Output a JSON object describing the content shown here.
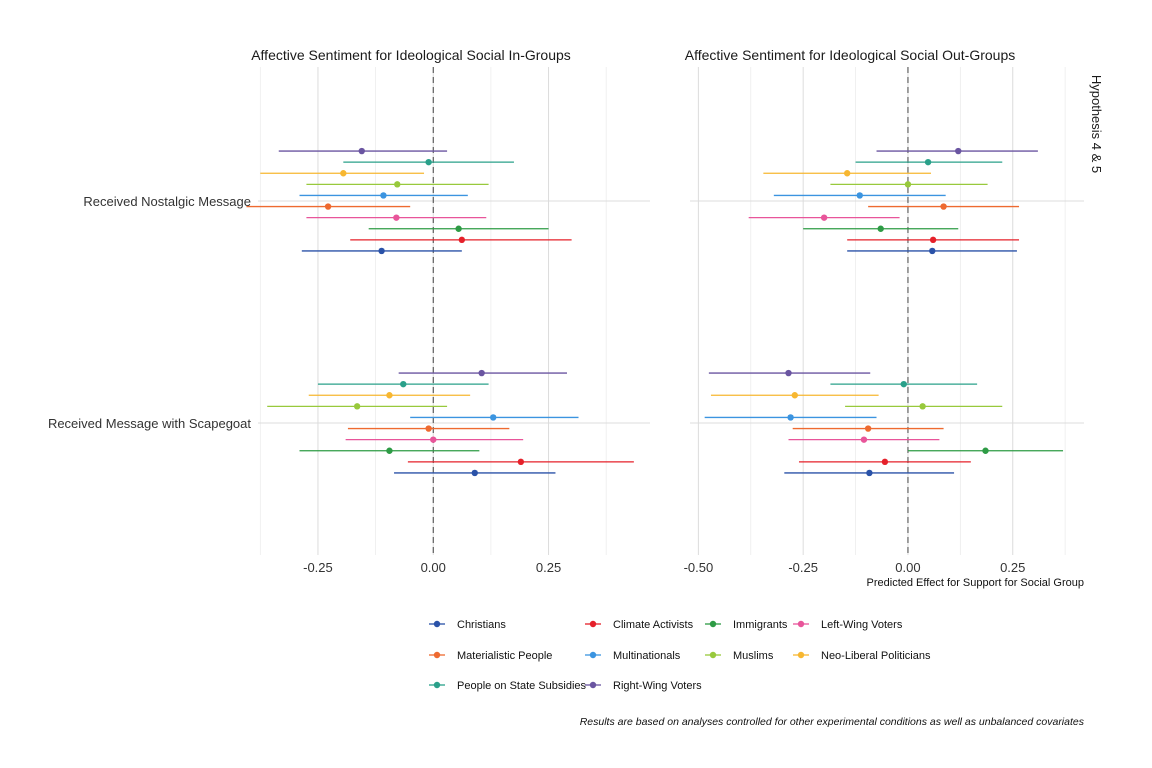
{
  "chart_data": {
    "type": "forest-plot",
    "facet_strip": "Hypothesis 4 & 5",
    "xlabel": "Predicted Effect for Support for Social Group",
    "caption": "Results are based on analyses controlled for other experimental conditions as well as unbalanced covariates",
    "conditions": [
      "Received Nostalgic Message",
      "Received Message with Scapegoat"
    ],
    "groups": [
      {
        "name": "Right-Wing Voters",
        "color": "#6a55a1"
      },
      {
        "name": "People on State Subsidies",
        "color": "#2aa08a"
      },
      {
        "name": "Neo-Liberal Politicians",
        "color": "#f7b731"
      },
      {
        "name": "Muslims",
        "color": "#98c93c"
      },
      {
        "name": "Multinationals",
        "color": "#3b94e0"
      },
      {
        "name": "Materialistic People",
        "color": "#ee6a30"
      },
      {
        "name": "Left-Wing Voters",
        "color": "#e8559a"
      },
      {
        "name": "Immigrants",
        "color": "#2e9b45"
      },
      {
        "name": "Climate Activists",
        "color": "#e5202a"
      },
      {
        "name": "Christians",
        "color": "#2a52a8"
      }
    ],
    "legend_order": [
      "Christians",
      "Climate Activists",
      "Immigrants",
      "Left-Wing Voters",
      "Materialistic People",
      "Multinationals",
      "Muslims",
      "Neo-Liberal Politicians",
      "People on State Subsidies",
      "Right-Wing Voters"
    ],
    "panels": [
      {
        "title": "Affective Sentiment for Ideological Social In-Groups",
        "xlim": [
          -0.38,
          0.47
        ],
        "xticks": [
          -0.25,
          0.0,
          0.25
        ],
        "xtick_labels": [
          "-0.25",
          "0.00",
          "0.25"
        ],
        "estimates": {
          "Received Nostalgic Message": [
            [
              -0.155,
              -0.335,
              0.03
            ],
            [
              -0.01,
              -0.195,
              0.175
            ],
            [
              -0.195,
              -0.375,
              -0.02
            ],
            [
              -0.078,
              -0.275,
              0.12
            ],
            [
              -0.108,
              -0.29,
              0.075
            ],
            [
              -0.228,
              -0.405,
              -0.05
            ],
            [
              -0.08,
              -0.275,
              0.115
            ],
            [
              0.055,
              -0.14,
              0.25
            ],
            [
              0.062,
              -0.18,
              0.3
            ],
            [
              -0.112,
              -0.285,
              0.062
            ]
          ],
          "Received Message with Scapegoat": [
            [
              0.105,
              -0.075,
              0.29
            ],
            [
              -0.065,
              -0.25,
              0.12
            ],
            [
              -0.095,
              -0.27,
              0.08
            ],
            [
              -0.165,
              -0.36,
              0.03
            ],
            [
              0.13,
              -0.05,
              0.315
            ],
            [
              -0.01,
              -0.185,
              0.165
            ],
            [
              0.0,
              -0.19,
              0.195
            ],
            [
              -0.095,
              -0.29,
              0.1
            ],
            [
              0.19,
              -0.055,
              0.435
            ],
            [
              0.09,
              -0.085,
              0.265
            ]
          ]
        }
      },
      {
        "title": "Affective Sentiment for Ideological Social Out-Groups",
        "xlim": [
          -0.52,
          0.42
        ],
        "xticks": [
          -0.5,
          -0.25,
          0.0,
          0.25
        ],
        "xtick_labels": [
          "-0.50",
          "-0.25",
          "0.00",
          "0.25"
        ],
        "estimates": {
          "Received Nostalgic Message": [
            [
              0.12,
              -0.075,
              0.31
            ],
            [
              0.048,
              -0.125,
              0.225
            ],
            [
              -0.145,
              -0.345,
              0.055
            ],
            [
              0.0,
              -0.185,
              0.19
            ],
            [
              -0.115,
              -0.32,
              0.09
            ],
            [
              0.085,
              -0.095,
              0.265
            ],
            [
              -0.2,
              -0.38,
              -0.02
            ],
            [
              -0.065,
              -0.25,
              0.12
            ],
            [
              0.06,
              -0.145,
              0.265
            ],
            [
              0.058,
              -0.145,
              0.26
            ]
          ],
          "Received Message with Scapegoat": [
            [
              -0.285,
              -0.475,
              -0.09
            ],
            [
              -0.01,
              -0.185,
              0.165
            ],
            [
              -0.27,
              -0.47,
              -0.07
            ],
            [
              0.035,
              -0.15,
              0.225
            ],
            [
              -0.28,
              -0.485,
              -0.075
            ],
            [
              -0.095,
              -0.275,
              0.085
            ],
            [
              -0.105,
              -0.285,
              0.075
            ],
            [
              0.185,
              0.0,
              0.37
            ],
            [
              -0.055,
              -0.26,
              0.15
            ],
            [
              -0.092,
              -0.295,
              0.11
            ]
          ]
        }
      }
    ]
  }
}
